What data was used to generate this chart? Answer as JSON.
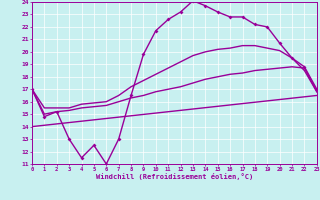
{
  "bg_color": "#c8f0f0",
  "line_color": "#990099",
  "xlabel": "Windchill (Refroidissement éolien,°C)",
  "xmin": 0,
  "xmax": 23,
  "ymin": 11,
  "ymax": 24,
  "x_ticks": [
    0,
    1,
    2,
    3,
    4,
    5,
    6,
    7,
    8,
    9,
    10,
    11,
    12,
    13,
    14,
    15,
    16,
    17,
    18,
    19,
    20,
    21,
    22,
    23
  ],
  "y_ticks": [
    11,
    12,
    13,
    14,
    15,
    16,
    17,
    18,
    19,
    20,
    21,
    22,
    23,
    24
  ],
  "line1_x": [
    0,
    1,
    2,
    3,
    4,
    5,
    6,
    7,
    8,
    9,
    10,
    11,
    12,
    13,
    14,
    15,
    16,
    17,
    18,
    19,
    20,
    21,
    22,
    23
  ],
  "line1_y": [
    17.0,
    14.8,
    15.2,
    13.0,
    11.5,
    12.5,
    11.0,
    13.0,
    16.5,
    19.8,
    21.7,
    22.6,
    23.2,
    24.1,
    23.7,
    23.2,
    22.8,
    22.8,
    22.2,
    22.0,
    20.7,
    19.5,
    18.8,
    17.0
  ],
  "line2_x": [
    0,
    1,
    2,
    3,
    4,
    5,
    6,
    7,
    8,
    9,
    10,
    11,
    12,
    13,
    14,
    15,
    16,
    17,
    18,
    19,
    20,
    21,
    22,
    23
  ],
  "line2_y": [
    17.0,
    15.5,
    15.5,
    15.5,
    15.8,
    15.9,
    16.0,
    16.5,
    17.2,
    17.7,
    18.2,
    18.7,
    19.2,
    19.7,
    20.0,
    20.2,
    20.3,
    20.5,
    20.5,
    20.3,
    20.1,
    19.5,
    18.5,
    16.8
  ],
  "line3_x": [
    0,
    1,
    2,
    3,
    4,
    5,
    6,
    7,
    8,
    9,
    10,
    11,
    12,
    13,
    14,
    15,
    16,
    17,
    18,
    19,
    20,
    21,
    22,
    23
  ],
  "line3_y": [
    17.0,
    15.0,
    15.2,
    15.3,
    15.5,
    15.6,
    15.7,
    16.0,
    16.3,
    16.5,
    16.8,
    17.0,
    17.2,
    17.5,
    17.8,
    18.0,
    18.2,
    18.3,
    18.5,
    18.6,
    18.7,
    18.8,
    18.7,
    16.8
  ],
  "line4_x": [
    0,
    23
  ],
  "line4_y": [
    14.0,
    16.5
  ]
}
